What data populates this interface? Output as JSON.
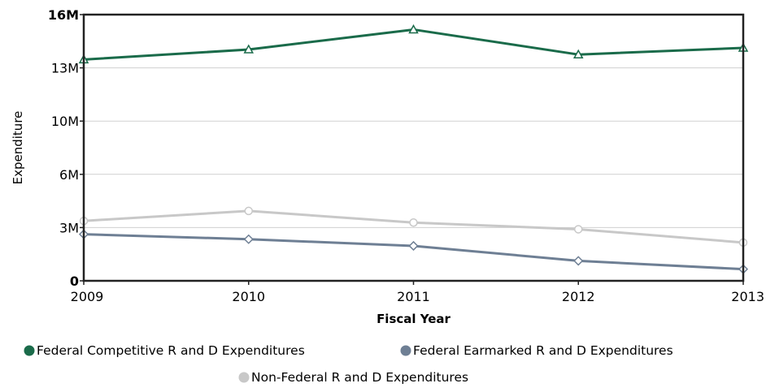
{
  "chart_data": {
    "type": "line",
    "xlabel": "Fiscal Year",
    "ylabel": "Expenditure",
    "categories": [
      "2009",
      "2010",
      "2011",
      "2012",
      "2013"
    ],
    "ylim": [
      0,
      16
    ],
    "y_ticks": [
      {
        "value": 0,
        "label": "0"
      },
      {
        "value": 3.2,
        "label": "3M"
      },
      {
        "value": 6.4,
        "label": "6M"
      },
      {
        "value": 9.6,
        "label": "10M"
      },
      {
        "value": 12.8,
        "label": "13M"
      },
      {
        "value": 16,
        "label": "16M"
      }
    ],
    "grid": true,
    "legend_position": "bottom",
    "series": [
      {
        "name": "Federal Competitive R and D Expenditures",
        "color": "#1a6b4a",
        "marker": "triangle",
        "values": [
          13.3,
          13.9,
          15.1,
          13.6,
          14.0
        ]
      },
      {
        "name": "Federal Earmarked R and D Expenditures",
        "color": "#6e7f94",
        "marker": "diamond",
        "values": [
          2.8,
          2.5,
          2.1,
          1.2,
          0.7
        ]
      },
      {
        "name": "Non-Federal R and D Expenditures",
        "color": "#c8c8c8",
        "marker": "circle",
        "values": [
          3.6,
          4.2,
          3.5,
          3.1,
          2.3
        ]
      }
    ]
  }
}
